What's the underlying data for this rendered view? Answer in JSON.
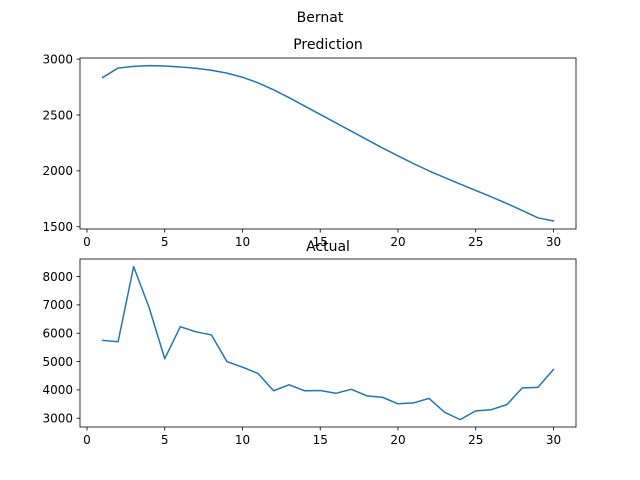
{
  "figure": {
    "suptitle": "Bernat",
    "line_color": "#1f77b4"
  },
  "chart_data": [
    {
      "type": "line",
      "title": "Prediction",
      "xlabel": "",
      "ylabel": "",
      "grid": false,
      "xlim": [
        -0.45,
        31.45
      ],
      "ylim": [
        1480,
        3010
      ],
      "xticks": [
        0,
        5,
        10,
        15,
        20,
        25,
        30
      ],
      "yticks": [
        1500,
        2000,
        2500,
        3000
      ],
      "x": [
        1,
        2,
        3,
        4,
        5,
        6,
        7,
        8,
        9,
        10,
        11,
        12,
        13,
        14,
        15,
        16,
        17,
        18,
        19,
        20,
        21,
        22,
        23,
        24,
        25,
        26,
        27,
        28,
        29,
        30
      ],
      "series": [
        {
          "values": [
            2835,
            2920,
            2935,
            2942,
            2938,
            2930,
            2918,
            2900,
            2875,
            2838,
            2788,
            2725,
            2655,
            2580,
            2505,
            2430,
            2355,
            2280,
            2205,
            2135,
            2065,
            2000,
            1940,
            1882,
            1825,
            1768,
            1708,
            1645,
            1580,
            1552
          ]
        }
      ]
    },
    {
      "type": "line",
      "title": "Actual",
      "xlabel": "",
      "ylabel": "",
      "grid": false,
      "xlim": [
        -0.45,
        31.45
      ],
      "ylim": [
        2690,
        8620
      ],
      "xticks": [
        0,
        5,
        10,
        15,
        20,
        25,
        30
      ],
      "yticks": [
        3000,
        4000,
        5000,
        6000,
        7000,
        8000
      ],
      "x": [
        1,
        2,
        3,
        4,
        5,
        6,
        7,
        8,
        9,
        10,
        11,
        12,
        13,
        14,
        15,
        16,
        17,
        18,
        19,
        20,
        21,
        22,
        23,
        24,
        25,
        26,
        27,
        28,
        29,
        30
      ],
      "series": [
        {
          "values": [
            5750,
            5700,
            8350,
            6900,
            5100,
            6230,
            6050,
            5940,
            5000,
            4800,
            4580,
            3970,
            4180,
            3970,
            3980,
            3880,
            4020,
            3790,
            3740,
            3510,
            3540,
            3700,
            3210,
            2950,
            3260,
            3300,
            3480,
            4070,
            4090,
            4720
          ]
        }
      ]
    }
  ]
}
